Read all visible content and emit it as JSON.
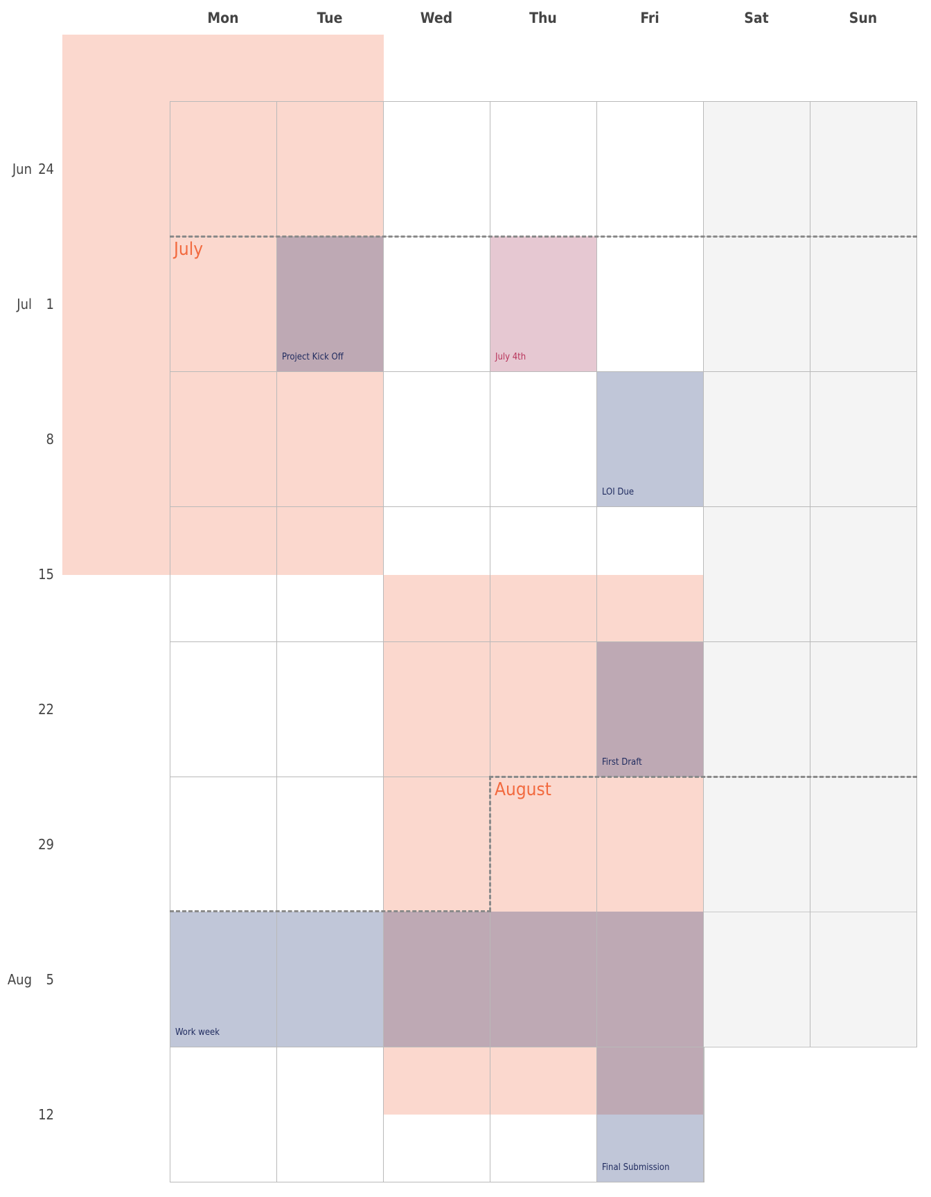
{
  "days": [
    "Mon",
    "Tue",
    "Wed",
    "Thu",
    "Fri",
    "Sat",
    "Sun"
  ],
  "rows": [
    {
      "month": "Jun",
      "day": "24"
    },
    {
      "month": "Jul",
      "day": "1"
    },
    {
      "month": "",
      "day": "8"
    },
    {
      "month": "",
      "day": "15"
    },
    {
      "month": "",
      "day": "22"
    },
    {
      "month": "",
      "day": "29"
    },
    {
      "month": "Aug",
      "day": "5"
    },
    {
      "month": "",
      "day": "12"
    }
  ],
  "months": [
    {
      "label": "July"
    },
    {
      "label": "August"
    }
  ],
  "events": [
    {
      "label": "Project Kick Off"
    },
    {
      "label": "July 4th"
    },
    {
      "label": "LOI Due"
    },
    {
      "label": "First Draft"
    },
    {
      "label": "Work week"
    },
    {
      "label": "Final Submission"
    }
  ],
  "colors": {
    "shade": "#f8b29e",
    "event_blue": "#c0c6d8",
    "event_overlap": "#bea9b4",
    "holiday": "#e6c8d2",
    "event_text": "#1e2a5e",
    "holiday_text": "#b8335a",
    "month_text": "#f26a3f",
    "weekend_bg": "#f4f4f4"
  }
}
